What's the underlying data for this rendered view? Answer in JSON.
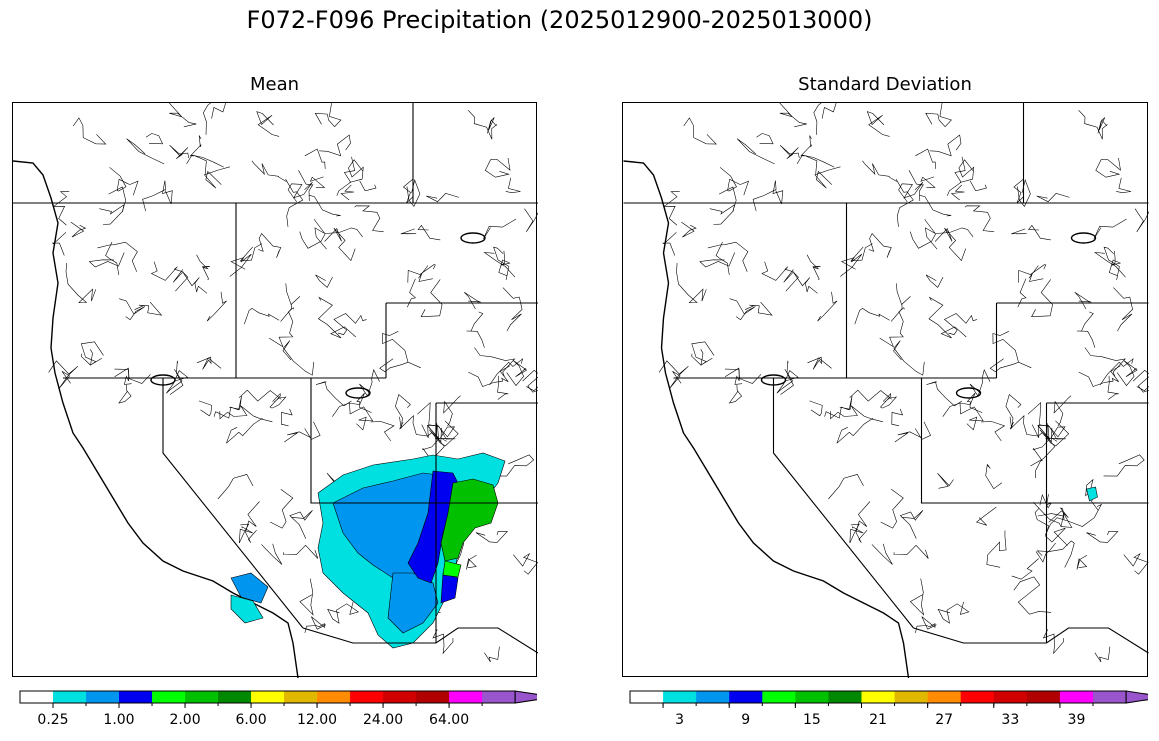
{
  "title": "F072-F096 Precipitation (2025012900-2025013000)",
  "panels": [
    {
      "title": "Mean"
    },
    {
      "title": "Standard Deviation"
    }
  ],
  "colorbar": {
    "colors": [
      "#ffffff",
      "#00e0e0",
      "#0096f0",
      "#0000f0",
      "#00ff00",
      "#00c000",
      "#008800",
      "#ffff00",
      "#e0b800",
      "#ff8c00",
      "#ff0000",
      "#d00000",
      "#b00000",
      "#ff00ff",
      "#9955cc"
    ],
    "mean_labels": [
      "0.25",
      "1.00",
      "2.00",
      "6.00",
      "12.00",
      "24.00",
      "64.00"
    ],
    "std_labels": [
      "3",
      "9",
      "15",
      "21",
      "27",
      "33",
      "39"
    ]
  }
}
